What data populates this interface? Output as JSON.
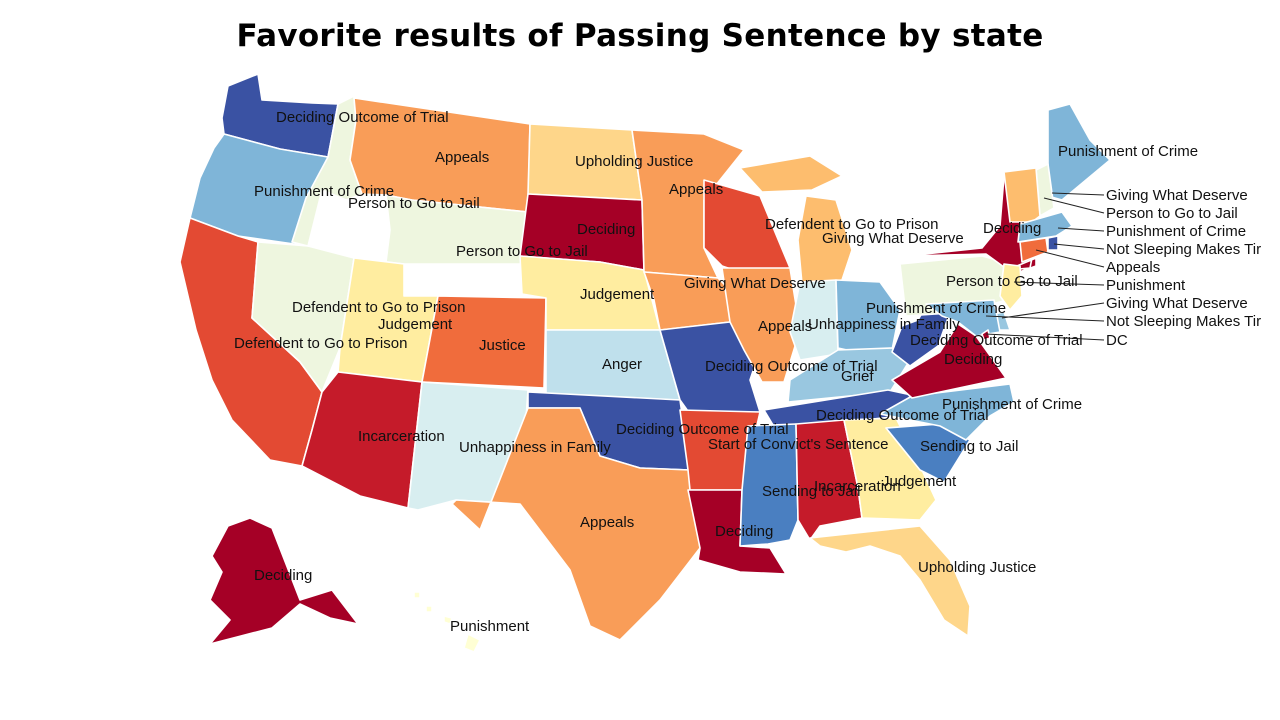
{
  "title": "Favorite results of Passing Sentence by state",
  "palette": {
    "dark_red": "#a50026",
    "red": "#c51b2a",
    "red_orange": "#e34a33",
    "dark_orange": "#f06c3c",
    "orange": "#f99d58",
    "light_orange": "#fdbd6e",
    "gold": "#fed68a",
    "pale_yellow": "#ffeda0",
    "cream": "#ffffd4",
    "pale_green": "#eef6df",
    "pale_cyan": "#d8eef0",
    "light_blue": "#bfe0ec",
    "sky_blue": "#99c7e0",
    "blue": "#7fb5d8",
    "mid_blue": "#4a7fc1",
    "dark_blue": "#3a52a3"
  },
  "states": [
    {
      "code": "WA",
      "label": "Deciding Outcome of Trial",
      "color": "#3a52a3"
    },
    {
      "code": "OR",
      "label": "Punishment of Crime",
      "color": "#7fb5d8"
    },
    {
      "code": "CA",
      "label": "Defendent to Go to Prison",
      "color": "#e34a33"
    },
    {
      "code": "NV",
      "label": "Defendent to Go to Prison",
      "color": "#eef6df"
    },
    {
      "code": "ID",
      "label": "Person to Go to Jail",
      "color": "#eef6df"
    },
    {
      "code": "MT",
      "label": "Appeals",
      "color": "#f99d58"
    },
    {
      "code": "WY",
      "label": "Person to Go to Jail",
      "color": "#eef6df"
    },
    {
      "code": "UT",
      "label": "Judgement",
      "color": "#ffeda0"
    },
    {
      "code": "AZ",
      "label": "Incarceration",
      "color": "#c51b2a"
    },
    {
      "code": "CO",
      "label": "Justice",
      "color": "#f06c3c"
    },
    {
      "code": "NM",
      "label": "Unhappiness in Family",
      "color": "#d8eef0"
    },
    {
      "code": "ND",
      "label": "Upholding Justice",
      "color": "#fed68a"
    },
    {
      "code": "SD",
      "label": "Deciding",
      "color": "#a50026"
    },
    {
      "code": "NE",
      "label": "Judgement",
      "color": "#ffeda0"
    },
    {
      "code": "KS",
      "label": "Anger",
      "color": "#bfe0ec"
    },
    {
      "code": "OK",
      "label": "Deciding Outcome of Trial",
      "color": "#3a52a3"
    },
    {
      "code": "TX",
      "label": "Appeals",
      "color": "#f99d58"
    },
    {
      "code": "MN",
      "label": "Appeals",
      "color": "#f99d58"
    },
    {
      "code": "IA",
      "label": "Giving What Deserve",
      "color": "#f99d58"
    },
    {
      "code": "MO",
      "label": "Deciding Outcome of Trial",
      "color": "#3a52a3"
    },
    {
      "code": "AR",
      "label": "Start of Convict's Sentence",
      "color": "#e34a33"
    },
    {
      "code": "LA",
      "label": "Deciding",
      "color": "#a50026"
    },
    {
      "code": "WI",
      "label": "Defendent to Go to Prison",
      "color": "#e34a33"
    },
    {
      "code": "IL",
      "label": "Appeals",
      "color": "#f99d58"
    },
    {
      "code": "MI",
      "label": "Giving What Deserve",
      "color": "#fdbd6e"
    },
    {
      "code": "IN",
      "label": "Unhappiness in Family",
      "color": "#d8eef0"
    },
    {
      "code": "OH",
      "label": "Punishment of Crime",
      "color": "#7fb5d8"
    },
    {
      "code": "KY",
      "label": "Grief",
      "color": "#99c7e0"
    },
    {
      "code": "TN",
      "label": "Deciding Outcome of Trial",
      "color": "#3a52a3"
    },
    {
      "code": "MS",
      "label": "Sending to Jail",
      "color": "#4a7fc1"
    },
    {
      "code": "AL",
      "label": "Incarceration",
      "color": "#c51b2a"
    },
    {
      "code": "GA",
      "label": "Judgement",
      "color": "#ffeda0"
    },
    {
      "code": "FL",
      "label": "Upholding Justice",
      "color": "#fed68a"
    },
    {
      "code": "SC",
      "label": "Sending to Jail",
      "color": "#4a7fc1"
    },
    {
      "code": "NC",
      "label": "Punishment of Crime",
      "color": "#7fb5d8"
    },
    {
      "code": "VA",
      "label": "Deciding",
      "color": "#a50026"
    },
    {
      "code": "WV",
      "label": "Deciding Outcome of Trial",
      "color": "#3a52a3"
    },
    {
      "code": "PA",
      "label": "Person to Go to Jail",
      "color": "#eef6df"
    },
    {
      "code": "NY",
      "label": "Deciding",
      "color": "#a50026"
    },
    {
      "code": "ME",
      "label": "Punishment of Crime",
      "color": "#7fb5d8"
    },
    {
      "code": "NH",
      "label": "Person to Go to Jail",
      "color": "#eef6df"
    },
    {
      "code": "VT",
      "label": "Giving What Deserve",
      "color": "#fdbd6e"
    },
    {
      "code": "MA",
      "label": "Punishment of Crime",
      "color": "#7fb5d8"
    },
    {
      "code": "RI",
      "label": "Not Sleeping Makes Tir",
      "color": "#3a52a3"
    },
    {
      "code": "CT",
      "label": "Appeals",
      "color": "#f06c3c"
    },
    {
      "code": "NJ",
      "label": "Punishment",
      "color": "#ffeda0"
    },
    {
      "code": "DE",
      "label": "Giving What Deserve",
      "color": "#99c7e0"
    },
    {
      "code": "MD",
      "label": "Not Sleeping Makes Tir",
      "color": "#7fb5d8"
    },
    {
      "code": "DC",
      "label": "DC",
      "color": "#a50026"
    },
    {
      "code": "AK",
      "label": "Deciding",
      "color": "#a50026"
    },
    {
      "code": "HI",
      "label": "Punishment",
      "color": "#ffffd4"
    }
  ]
}
